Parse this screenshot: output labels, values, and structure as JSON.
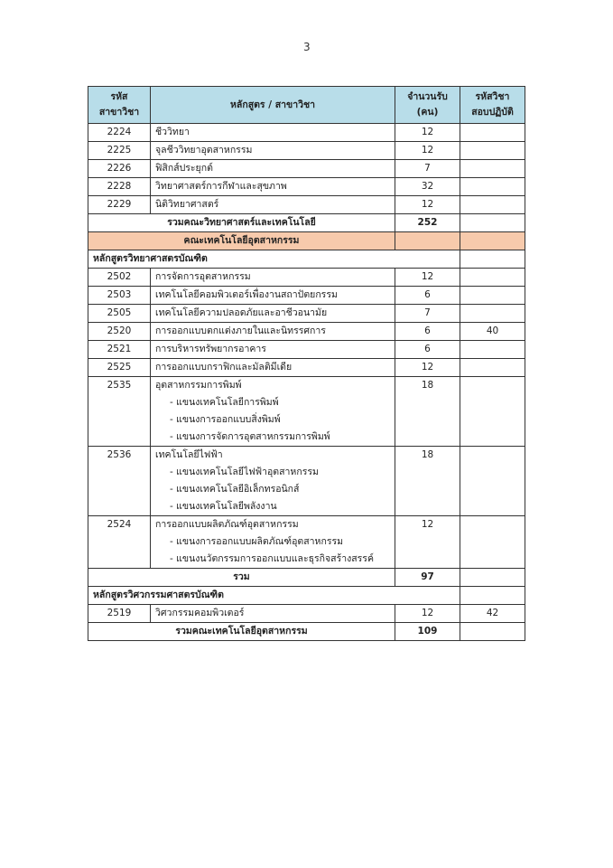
{
  "page_number": "3",
  "header": {
    "code": [
      "รหัส",
      "สาขาวิชา"
    ],
    "program": "หลักสูตร / สาขาวิชา",
    "count": [
      "จำนวนรับ",
      "(คน)"
    ],
    "exam": [
      "รหัสวิชา",
      "สอบปฏิบัติ"
    ]
  },
  "science_rows": [
    {
      "code": "2224",
      "name": "ชีววิทยา",
      "count": "12",
      "exam": ""
    },
    {
      "code": "2225",
      "name": "จุลชีววิทยาอุตสาหกรรม",
      "count": "12",
      "exam": ""
    },
    {
      "code": "2226",
      "name": "ฟิสิกส์ประยุกต์",
      "count": "7",
      "exam": ""
    },
    {
      "code": "2228",
      "name": "วิทยาศาสตร์การกีฬาและสุขภาพ",
      "count": "32",
      "exam": ""
    },
    {
      "code": "2229",
      "name": "นิติวิทยาศาสตร์",
      "count": "12",
      "exam": ""
    }
  ],
  "science_total": {
    "label": "รวมคณะวิทยาศาสตร์และเทคโนโลยี",
    "count": "252"
  },
  "faculty": "คณะเทคโนโลยีอุตสาหกรรม",
  "section1": "หลักสูตรวิทยาศาสตรบัณฑิต",
  "tech_rows": [
    {
      "code": "2502",
      "name": "การจัดการอุตสาหกรรม",
      "count": "12",
      "exam": "",
      "subs": []
    },
    {
      "code": "2503",
      "name": "เทคโนโลยีคอมพิวเตอร์เพื่องานสถาปัตยกรรม",
      "count": "6",
      "exam": "",
      "subs": []
    },
    {
      "code": "2505",
      "name": "เทคโนโลยีความปลอดภัยและอาชีวอนามัย",
      "count": "7",
      "exam": "",
      "subs": []
    },
    {
      "code": "2520",
      "name": "การออกแบบตกแต่งภายในและนิทรรศการ",
      "count": "6",
      "exam": "40",
      "subs": []
    },
    {
      "code": "2521",
      "name": "การบริหารทรัพยากรอาคาร",
      "count": "6",
      "exam": "",
      "subs": []
    },
    {
      "code": "2525",
      "name": "การออกแบบกราฟิกและมัลติมีเดีย",
      "count": "12",
      "exam": "",
      "subs": []
    },
    {
      "code": "2535",
      "name": "อุตสาหกรรมการพิมพ์",
      "count": "18",
      "exam": "",
      "subs": [
        "- แขนงเทคโนโลยีการพิมพ์",
        "- แขนงการออกแบบสิ่งพิมพ์",
        "- แขนงการจัดการอุตสาหกรรมการพิมพ์"
      ]
    },
    {
      "code": "2536",
      "name": "เทคโนโลยีไฟฟ้า",
      "count": "18",
      "exam": "",
      "subs": [
        "- แขนงเทคโนโลยีไฟฟ้าอุตสาหกรรม",
        "- แขนงเทคโนโลยีอิเล็กทรอนิกส์",
        "- แขนงเทคโนโลยีพลังงาน"
      ]
    },
    {
      "code": "2524",
      "name": "การออกแบบผลิตภัณฑ์อุตสาหกรรม",
      "count": "12",
      "exam": "",
      "subs": [
        "- แขนงการออกแบบผลิตภัณฑ์อุตสาหกรรม",
        "- แขนงนวัตกรรมการออกแบบและธุรกิจสร้างสรรค์"
      ]
    }
  ],
  "subtotal": {
    "label": "รวม",
    "count": "97"
  },
  "section2": "หลักสูตรวิศวกรรมศาสตรบัณฑิต",
  "eng_row": {
    "code": "2519",
    "name": "วิศวกรรมคอมพิวเตอร์",
    "count": "12",
    "exam": "42"
  },
  "tech_total": {
    "label": "รวมคณะเทคโนโลยีอุตสาหกรรม",
    "count": "109"
  },
  "colors": {
    "header_bg": "#b8dde9",
    "faculty_bg": "#f7caac"
  }
}
